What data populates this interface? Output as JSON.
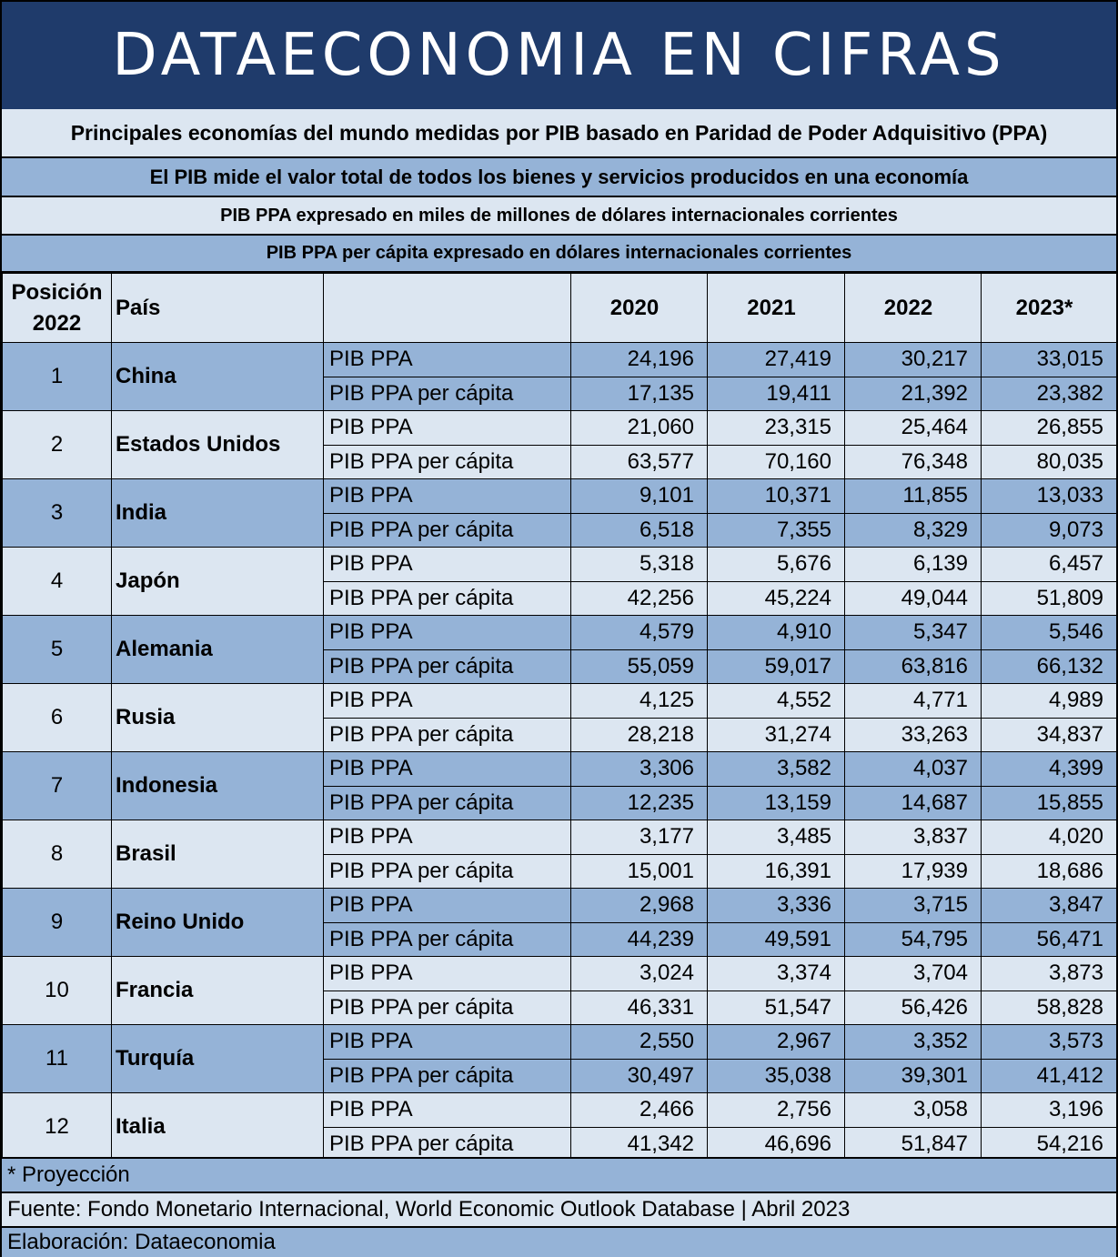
{
  "banner": {
    "title": "DATAECONOMIA EN CIFRAS"
  },
  "subtitles": [
    "Principales economías del mundo medidas por PIB basado en Paridad de Poder Adquisitivo (PPA)",
    "El PIB mide el valor total de todos los bienes y servicios producidos en una economía",
    "PIB PPA expresado en miles de millones de dólares internacionales corrientes",
    "PIB PPA per cápita expresado en dólares internacionales corrientes"
  ],
  "table": {
    "headers": {
      "position_line1": "Posición",
      "position_line2": "2022",
      "country": "País",
      "indicator": "",
      "years": [
        "2020",
        "2021",
        "2022",
        "2023*"
      ]
    },
    "row_labels": {
      "ppa": "PIB PPA",
      "per_capita": "PIB PPA per cápita"
    },
    "rows": [
      {
        "pos": "1",
        "country": "China",
        "ppa": [
          "24,196",
          "27,419",
          "30,217",
          "33,015"
        ],
        "per_capita": [
          "17,135",
          "19,411",
          "21,392",
          "23,382"
        ]
      },
      {
        "pos": "2",
        "country": "Estados Unidos",
        "ppa": [
          "21,060",
          "23,315",
          "25,464",
          "26,855"
        ],
        "per_capita": [
          "63,577",
          "70,160",
          "76,348",
          "80,035"
        ]
      },
      {
        "pos": "3",
        "country": "India",
        "ppa": [
          "9,101",
          "10,371",
          "11,855",
          "13,033"
        ],
        "per_capita": [
          "6,518",
          "7,355",
          "8,329",
          "9,073"
        ]
      },
      {
        "pos": "4",
        "country": "Japón",
        "ppa": [
          "5,318",
          "5,676",
          "6,139",
          "6,457"
        ],
        "per_capita": [
          "42,256",
          "45,224",
          "49,044",
          "51,809"
        ]
      },
      {
        "pos": "5",
        "country": "Alemania",
        "ppa": [
          "4,579",
          "4,910",
          "5,347",
          "5,546"
        ],
        "per_capita": [
          "55,059",
          "59,017",
          "63,816",
          "66,132"
        ]
      },
      {
        "pos": "6",
        "country": "Rusia",
        "ppa": [
          "4,125",
          "4,552",
          "4,771",
          "4,989"
        ],
        "per_capita": [
          "28,218",
          "31,274",
          "33,263",
          "34,837"
        ]
      },
      {
        "pos": "7",
        "country": "Indonesia",
        "ppa": [
          "3,306",
          "3,582",
          "4,037",
          "4,399"
        ],
        "per_capita": [
          "12,235",
          "13,159",
          "14,687",
          "15,855"
        ]
      },
      {
        "pos": "8",
        "country": "Brasil",
        "ppa": [
          "3,177",
          "3,485",
          "3,837",
          "4,020"
        ],
        "per_capita": [
          "15,001",
          "16,391",
          "17,939",
          "18,686"
        ]
      },
      {
        "pos": "9",
        "country": "Reino Unido",
        "ppa": [
          "2,968",
          "3,336",
          "3,715",
          "3,847"
        ],
        "per_capita": [
          "44,239",
          "49,591",
          "54,795",
          "56,471"
        ]
      },
      {
        "pos": "10",
        "country": "Francia",
        "ppa": [
          "3,024",
          "3,374",
          "3,704",
          "3,873"
        ],
        "per_capita": [
          "46,331",
          "51,547",
          "56,426",
          "58,828"
        ]
      },
      {
        "pos": "11",
        "country": "Turquía",
        "ppa": [
          "2,550",
          "2,967",
          "3,352",
          "3,573"
        ],
        "per_capita": [
          "30,497",
          "35,038",
          "39,301",
          "41,412"
        ]
      },
      {
        "pos": "12",
        "country": "Italia",
        "ppa": [
          "2,466",
          "2,756",
          "3,058",
          "3,196"
        ],
        "per_capita": [
          "41,342",
          "46,696",
          "51,847",
          "54,216"
        ]
      }
    ]
  },
  "footer": {
    "note": "* Proyección",
    "source": "Fuente: Fondo Monetario Internacional, World Economic Outlook Database | Abril 2023",
    "credit": "Elaboración: Dataeconomia"
  },
  "colors": {
    "banner": "#1f3b6b",
    "band_dark": "#95b3d7",
    "band_light": "#dce6f1"
  }
}
